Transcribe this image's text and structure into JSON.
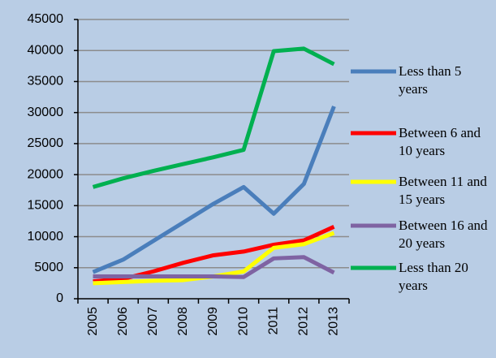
{
  "chart_data": {
    "type": "line",
    "categories": [
      "2005",
      "2006",
      "2007",
      "2008",
      "2009",
      "2010",
      "2011",
      "2012",
      "2013"
    ],
    "series": [
      {
        "name": "Less than 5 years",
        "color": "#4a7ebb",
        "values": [
          4300,
          6300,
          9300,
          12300,
          15300,
          18000,
          13700,
          18500,
          31000
        ]
      },
      {
        "name": "Between 6 and 10 years",
        "color": "#ff0000",
        "values": [
          2800,
          3200,
          4400,
          5800,
          7000,
          7600,
          8700,
          9400,
          11600
        ]
      },
      {
        "name": "Between 11 and 15 years",
        "color": "#ffff00",
        "values": [
          2500,
          2700,
          2900,
          3000,
          3600,
          4400,
          8200,
          8800,
          10600
        ]
      },
      {
        "name": "Between 16 and 20 years",
        "color": "#7f63a2",
        "values": [
          3600,
          3600,
          3600,
          3600,
          3600,
          3500,
          6500,
          6700,
          4200
        ]
      },
      {
        "name": "Less than 20 years",
        "color": "#00b050",
        "values": [
          18000,
          19400,
          20600,
          21700,
          22800,
          24000,
          39900,
          40300,
          37800
        ]
      }
    ],
    "ylim": [
      0,
      45000
    ],
    "yticks": [
      0,
      5000,
      10000,
      15000,
      20000,
      25000,
      30000,
      35000,
      40000,
      45000
    ],
    "grid": true,
    "legend": "right"
  }
}
